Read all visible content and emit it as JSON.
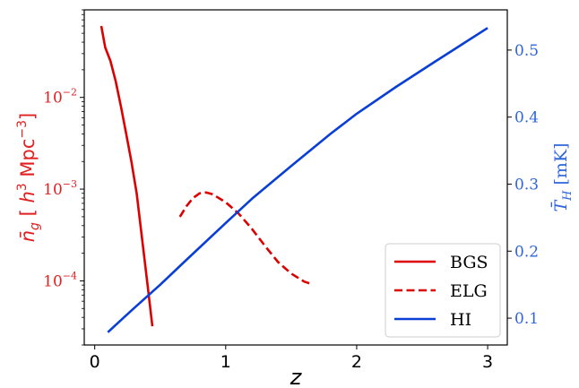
{
  "chart_data": {
    "type": "line",
    "x": {
      "label": "z",
      "lim": [
        -0.08,
        3.15
      ],
      "ticks": [
        0,
        1,
        2,
        3
      ],
      "tick_labels": [
        "0",
        "1",
        "2",
        "3"
      ]
    },
    "y_left": {
      "label_parts": {
        "pre": "n̄",
        "sub": "g",
        "mid": " [ h",
        "sup1": "3",
        "mpc": " Mpc",
        "sup2": "−3",
        "post": "]"
      },
      "scale": "log",
      "lim": [
        2e-05,
        0.09
      ],
      "ticks": [
        0.0001,
        0.001,
        0.01
      ],
      "tick_labels": [
        {
          "base": "10",
          "exp": "−4"
        },
        {
          "base": "10",
          "exp": "−3"
        },
        {
          "base": "10",
          "exp": "−2"
        }
      ],
      "color": "#e02020"
    },
    "y_right": {
      "label_parts": {
        "pre": "T̄",
        "sub": "H",
        "post": " [mK]"
      },
      "scale": "linear",
      "lim": [
        0.06,
        0.56
      ],
      "ticks": [
        0.1,
        0.2,
        0.3,
        0.4,
        0.5
      ],
      "tick_labels": [
        "0.1",
        "0.2",
        "0.3",
        "0.4",
        "0.5"
      ],
      "color": "#2f66db"
    },
    "series": [
      {
        "name": "BGS",
        "axis": "left",
        "color": "#dd0000",
        "style": "solid",
        "x": [
          0.05,
          0.08,
          0.12,
          0.16,
          0.2,
          0.24,
          0.28,
          0.32,
          0.36,
          0.4,
          0.44
        ],
        "y": [
          0.06,
          0.035,
          0.025,
          0.015,
          0.008,
          0.004,
          0.002,
          0.0009,
          0.0003,
          0.0001,
          3.2e-05
        ]
      },
      {
        "name": "ELG",
        "axis": "left",
        "color": "#dd0000",
        "style": "dashed",
        "x": [
          0.65,
          0.7,
          0.75,
          0.8,
          0.85,
          0.9,
          1.0,
          1.1,
          1.2,
          1.3,
          1.4,
          1.5,
          1.6,
          1.65
        ],
        "y": [
          0.0005,
          0.00065,
          0.0008,
          0.0009,
          0.00092,
          0.00088,
          0.00072,
          0.00054,
          0.00037,
          0.00024,
          0.00016,
          0.00012,
          9.8e-05,
          9.3e-05
        ]
      },
      {
        "name": "HI",
        "axis": "right",
        "color": "#0a3fd6",
        "style": "solid",
        "x": [
          0.1,
          0.2,
          0.3,
          0.5,
          0.7,
          1.0,
          1.2,
          1.5,
          1.8,
          2.0,
          2.3,
          2.6,
          2.8,
          3.0
        ],
        "y": [
          0.079,
          0.097,
          0.115,
          0.15,
          0.187,
          0.242,
          0.278,
          0.327,
          0.375,
          0.405,
          0.445,
          0.483,
          0.508,
          0.533
        ]
      }
    ],
    "legend": {
      "location": "lower right",
      "entries": [
        "BGS",
        "ELG",
        "HI"
      ]
    }
  }
}
